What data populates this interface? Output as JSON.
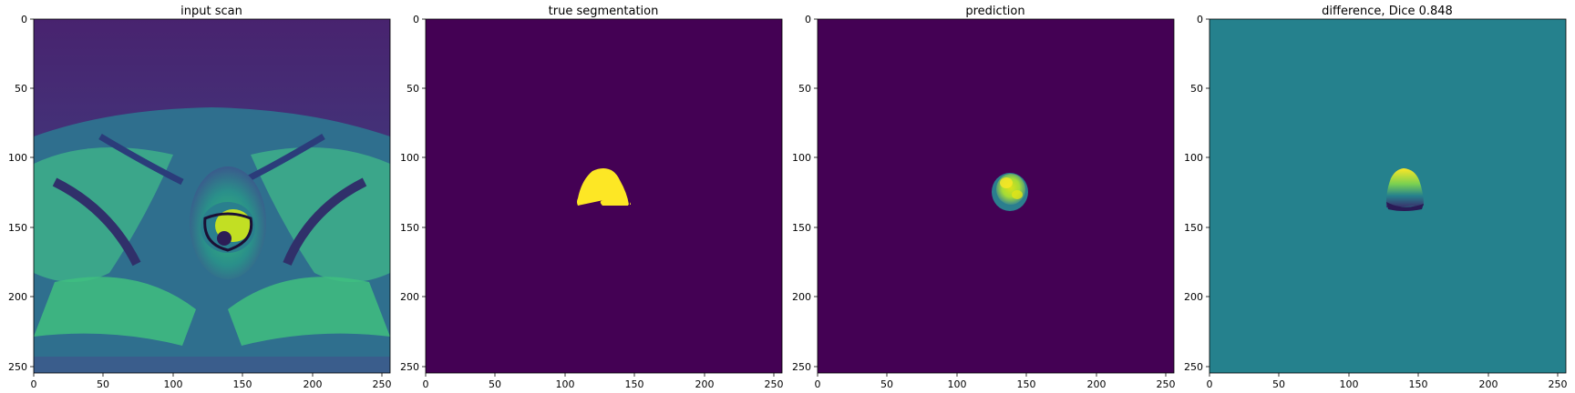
{
  "panels": [
    {
      "id": "input-scan",
      "title": "input scan",
      "image": "prostate-mri-axial-slice",
      "cmap": "viridis"
    },
    {
      "id": "true-segmentation",
      "title": "true segmentation",
      "image": "binary-mask",
      "cmap": "viridis"
    },
    {
      "id": "prediction",
      "title": "prediction",
      "image": "predicted-probability-mask",
      "cmap": "viridis"
    },
    {
      "id": "difference",
      "title": "difference, Dice 0.848",
      "image": "difference-map",
      "cmap": "viridis"
    }
  ],
  "axes": {
    "x_ticks": [
      "0",
      "50",
      "100",
      "150",
      "200",
      "250"
    ],
    "y_ticks": [
      "0",
      "50",
      "100",
      "150",
      "200",
      "250"
    ],
    "extent": [
      0,
      256
    ]
  },
  "colors": {
    "viridis_low": "#440154",
    "viridis_mid": "#21918c",
    "viridis_high": "#fde725",
    "mask_background": "#440154",
    "difference_background": "#25818d"
  }
}
